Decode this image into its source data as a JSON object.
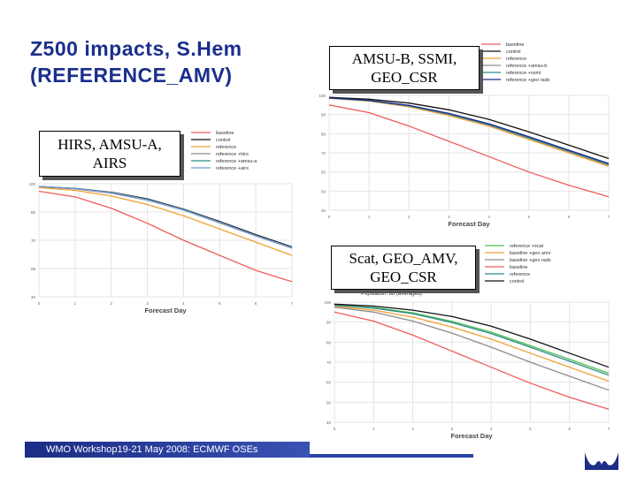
{
  "slide": {
    "title": "Z500 impacts, S.Hem (REFERENCE_AMV)",
    "footer": "WMO Workshop19-21 May 2008: ECMWF OSEs",
    "callouts": {
      "left": "HIRS, AMSU-A, AIRS",
      "top_right": "AMSU-B, SSMI, GEO_CSR",
      "bottom_right": "Scat, GEO_AMV, GEO_CSR"
    }
  },
  "chart_data": [
    {
      "type": "line",
      "panel": "left",
      "xlabel": "Forecast Day",
      "xlim": [
        0,
        7
      ],
      "ylim": [
        40,
        100
      ],
      "xticks": [
        "0",
        "1",
        "2",
        "3",
        "4",
        "5",
        "6",
        "7"
      ],
      "yticks": [
        "40",
        "55",
        "70",
        "85",
        "100"
      ],
      "x": [
        0,
        1,
        2,
        3,
        4,
        5,
        6,
        7
      ],
      "series": [
        {
          "name": "baseline",
          "color": "#ef5a5a",
          "values": [
            96,
            93,
            87,
            79,
            70,
            62,
            54,
            48
          ]
        },
        {
          "name": "control",
          "color": "#111111",
          "values": [
            98.5,
            97.5,
            95.5,
            92,
            86.5,
            80,
            73,
            66.5
          ]
        },
        {
          "name": "reference",
          "color": "#f0a030",
          "values": [
            98,
            96.5,
            93.5,
            89,
            83,
            76,
            69,
            62
          ]
        },
        {
          "name": "reference +hirs",
          "color": "#8c8c8c",
          "values": [
            98.5,
            97.3,
            95,
            91.3,
            86,
            79.2,
            72.3,
            65.8
          ]
        },
        {
          "name": "reference +amsu-a",
          "color": "#2a8a8a",
          "values": [
            98.5,
            97.4,
            95.3,
            91.7,
            86.3,
            79.6,
            72.6,
            66.1
          ]
        },
        {
          "name": "reference +airs",
          "color": "#7a9ad8",
          "values": [
            98.5,
            97.4,
            95.2,
            91.5,
            86.1,
            79.4,
            72.4,
            66
          ]
        }
      ]
    },
    {
      "type": "line",
      "panel": "top_right",
      "xlabel": "Forecast Day",
      "xlim": [
        0,
        7
      ],
      "ylim": [
        40,
        100
      ],
      "xticks": [
        "0",
        "1",
        "2",
        "3",
        "4",
        "5",
        "6",
        "7"
      ],
      "yticks": [
        "40",
        "50",
        "60",
        "70",
        "80",
        "90",
        "100"
      ],
      "x": [
        0,
        1,
        2,
        3,
        4,
        5,
        6,
        7
      ],
      "series": [
        {
          "name": "baseline",
          "color": "#ef5a5a",
          "values": [
            95,
            91,
            84,
            76,
            68,
            60,
            53,
            47
          ]
        },
        {
          "name": "control",
          "color": "#111111",
          "values": [
            99,
            98,
            96,
            92.5,
            87.5,
            81,
            74,
            67
          ]
        },
        {
          "name": "reference",
          "color": "#f0a030",
          "values": [
            98.5,
            97,
            94,
            89.5,
            84,
            77,
            70,
            63
          ]
        },
        {
          "name": "reference +amsu-b",
          "color": "#8c8c8c",
          "values": [
            98.6,
            97.2,
            94.4,
            90,
            84.5,
            77.6,
            70.6,
            63.6
          ]
        },
        {
          "name": "reference +ssmi",
          "color": "#2a8a8a",
          "values": [
            98.6,
            97.3,
            94.6,
            90.3,
            84.8,
            78,
            71,
            64
          ]
        },
        {
          "name": "reference +geo rads",
          "color": "#1c2a8a",
          "values": [
            98.7,
            97.4,
            94.8,
            90.6,
            85.2,
            78.4,
            71.4,
            64.4
          ]
        }
      ]
    },
    {
      "type": "line",
      "panel": "bottom_right",
      "title": "Population: 88 (averaged)",
      "xlabel": "Forecast Day",
      "xlim": [
        0,
        7
      ],
      "ylim": [
        40,
        100
      ],
      "xticks": [
        "0",
        "1",
        "2",
        "3",
        "4",
        "5",
        "6",
        "7"
      ],
      "yticks": [
        "40",
        "50",
        "60",
        "70",
        "80",
        "90",
        "100"
      ],
      "x": [
        0,
        1,
        2,
        3,
        4,
        5,
        6,
        7
      ],
      "series": [
        {
          "name": "reference +scat",
          "color": "#50c050",
          "values": [
            98.6,
            97.3,
            94.6,
            90.4,
            85,
            78.3,
            71.4,
            64.5
          ]
        },
        {
          "name": "baseline +geo amv",
          "color": "#f0a030",
          "values": [
            98,
            96,
            92.5,
            87.5,
            81.5,
            74.5,
            67.5,
            60.5
          ]
        },
        {
          "name": "baseline +geo rads",
          "color": "#8c8c8c",
          "values": [
            97.5,
            95,
            90.5,
            84.5,
            77.5,
            70,
            63,
            56
          ]
        },
        {
          "name": "baseline",
          "color": "#ef5a5a",
          "values": [
            95,
            90.5,
            83.5,
            75.5,
            67.5,
            59.5,
            52.5,
            46.5
          ]
        },
        {
          "name": "reference",
          "color": "#2a8a8a",
          "values": [
            98.5,
            97,
            94.2,
            89.8,
            84.3,
            77.5,
            70.5,
            63.5
          ]
        },
        {
          "name": "control",
          "color": "#111111",
          "values": [
            99,
            98,
            96,
            92.8,
            88,
            81.5,
            74.5,
            67.5
          ]
        }
      ]
    }
  ]
}
